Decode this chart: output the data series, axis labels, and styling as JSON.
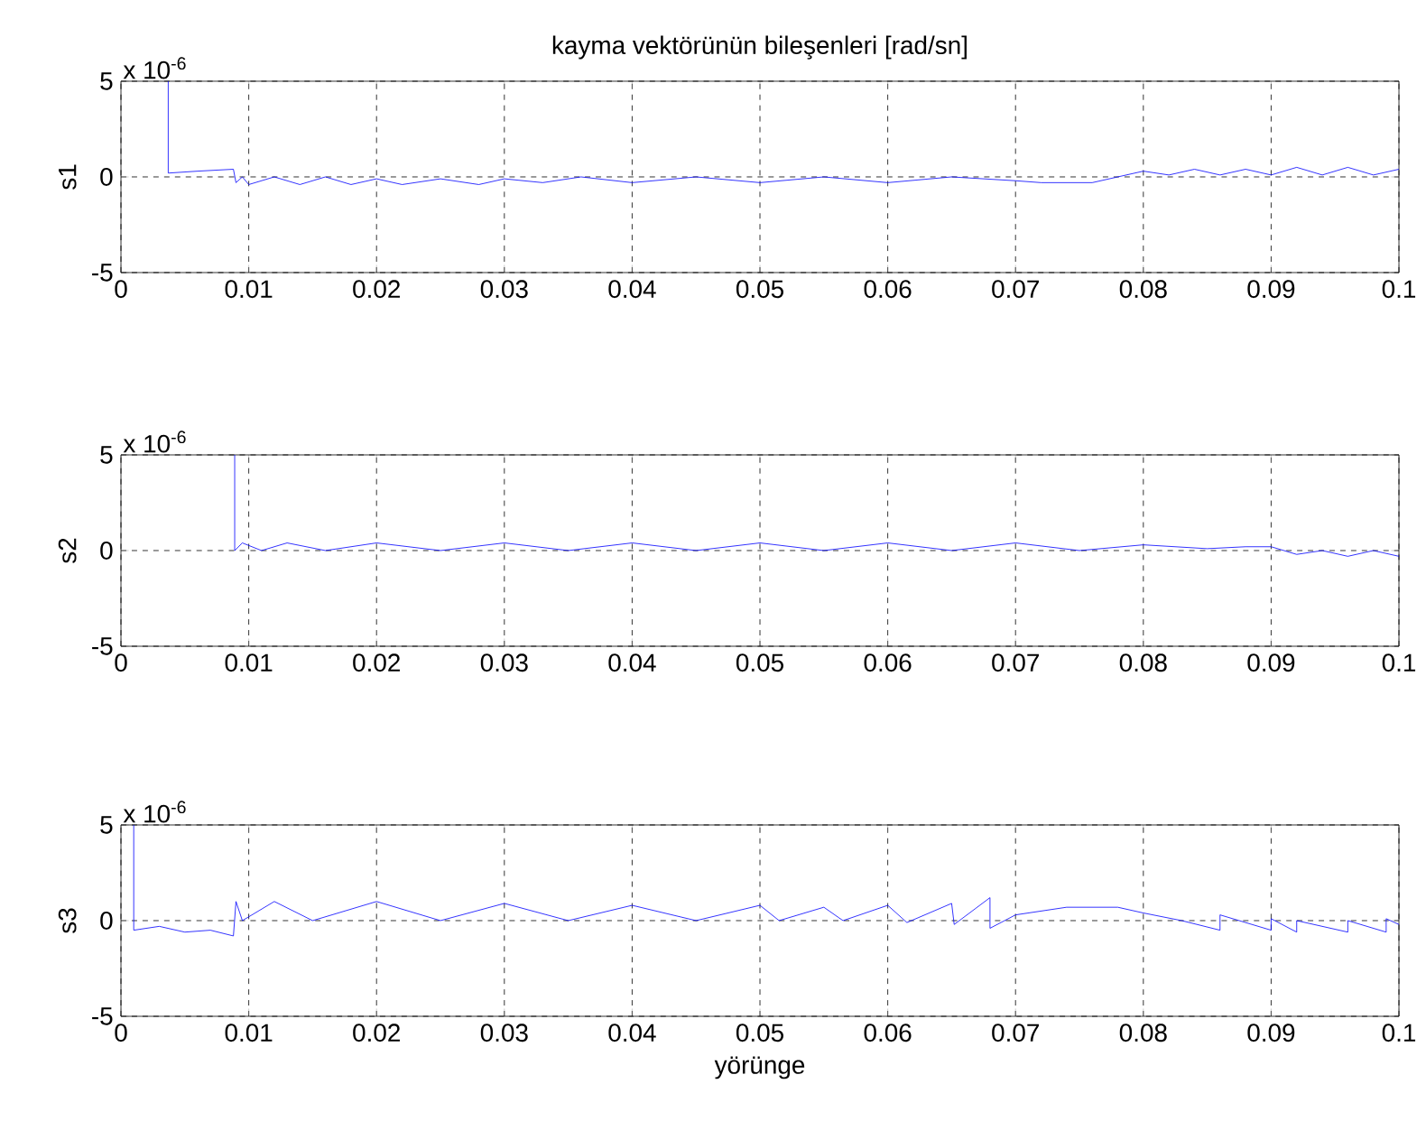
{
  "chart_data": [
    {
      "type": "line",
      "title": "kayma vektörünün bileşenleri [rad/sn]",
      "ylabel": "s1",
      "annotations": [
        "x 10$^{-6}$"
      ],
      "color": "#0000ff",
      "grid": true,
      "xlim": [
        0,
        0.1
      ],
      "ylim": [
        -5,
        5
      ],
      "xticks": [
        0,
        0.01,
        0.02,
        0.03,
        0.04,
        0.05,
        0.06,
        0.07,
        0.08,
        0.09,
        0.1
      ],
      "yticks": [
        -5,
        0,
        5
      ],
      "x": [
        0.0037,
        0.0037,
        0.006,
        0.0088,
        0.009,
        0.0095,
        0.01,
        0.012,
        0.014,
        0.016,
        0.018,
        0.02,
        0.022,
        0.025,
        0.028,
        0.03,
        0.033,
        0.036,
        0.04,
        0.045,
        0.05,
        0.055,
        0.06,
        0.065,
        0.07,
        0.072,
        0.076,
        0.078,
        0.08,
        0.082,
        0.084,
        0.086,
        0.088,
        0.09,
        0.092,
        0.094,
        0.096,
        0.098,
        0.1
      ],
      "values": [
        5,
        0.2,
        0.3,
        0.4,
        -0.3,
        0.0,
        -0.4,
        0,
        -0.4,
        0,
        -0.4,
        -0.1,
        -0.4,
        -0.1,
        -0.4,
        -0.1,
        -0.3,
        0.0,
        -0.3,
        0.0,
        -0.3,
        0.0,
        -0.3,
        0.0,
        -0.2,
        -0.3,
        -0.3,
        0,
        0.3,
        0.1,
        0.4,
        0.1,
        0.4,
        0.1,
        0.5,
        0.1,
        0.5,
        0.1,
        0.4
      ]
    },
    {
      "type": "line",
      "ylabel": "s2",
      "annotations": [
        "x 10$^{-6}$"
      ],
      "color": "#0000ff",
      "grid": true,
      "xlim": [
        0,
        0.1
      ],
      "ylim": [
        -5,
        5
      ],
      "xticks": [
        0,
        0.01,
        0.02,
        0.03,
        0.04,
        0.05,
        0.06,
        0.07,
        0.08,
        0.09,
        0.1
      ],
      "yticks": [
        -5,
        0,
        5
      ],
      "x": [
        0.0089,
        0.0089,
        0.0095,
        0.011,
        0.013,
        0.016,
        0.02,
        0.025,
        0.03,
        0.035,
        0.04,
        0.045,
        0.05,
        0.055,
        0.06,
        0.065,
        0.07,
        0.075,
        0.08,
        0.085,
        0.088,
        0.09,
        0.092,
        0.094,
        0.096,
        0.098,
        0.1
      ],
      "values": [
        5,
        0.0,
        0.4,
        0.0,
        0.4,
        0.0,
        0.4,
        0.0,
        0.4,
        0.0,
        0.4,
        0.0,
        0.4,
        0.0,
        0.4,
        0.0,
        0.4,
        0.0,
        0.3,
        0.1,
        0.2,
        0.2,
        -0.2,
        0.0,
        -0.3,
        0.0,
        -0.3
      ]
    },
    {
      "type": "line",
      "xlabel": "yörünge",
      "ylabel": "s3",
      "annotations": [
        "x 10$^{-6}$"
      ],
      "color": "#0000ff",
      "grid": true,
      "xlim": [
        0,
        0.1
      ],
      "ylim": [
        -5,
        5
      ],
      "xticks": [
        0,
        0.01,
        0.02,
        0.03,
        0.04,
        0.05,
        0.06,
        0.07,
        0.08,
        0.09,
        0.1
      ],
      "yticks": [
        -5,
        0,
        5
      ],
      "x": [
        0.001,
        0.001,
        0.003,
        0.005,
        0.007,
        0.0088,
        0.009,
        0.0095,
        0.012,
        0.015,
        0.02,
        0.025,
        0.03,
        0.035,
        0.04,
        0.045,
        0.05,
        0.0515,
        0.055,
        0.0565,
        0.06,
        0.0615,
        0.065,
        0.0652,
        0.068,
        0.068,
        0.07,
        0.074,
        0.078,
        0.08,
        0.083,
        0.086,
        0.086,
        0.09,
        0.09,
        0.092,
        0.092,
        0.096,
        0.096,
        0.099,
        0.099,
        0.1
      ],
      "values": [
        5,
        -0.5,
        -0.3,
        -0.6,
        -0.5,
        -0.8,
        1.0,
        0.0,
        1.0,
        0.0,
        1.0,
        0.0,
        0.9,
        0.0,
        0.8,
        0.0,
        0.8,
        0.0,
        0.7,
        0.0,
        0.8,
        -0.1,
        0.9,
        -0.2,
        1.2,
        -0.4,
        0.3,
        0.7,
        0.7,
        0.4,
        0.0,
        -0.5,
        0.3,
        -0.5,
        0.1,
        -0.6,
        0.0,
        -0.6,
        0.0,
        -0.6,
        0.1,
        -0.2
      ]
    }
  ]
}
